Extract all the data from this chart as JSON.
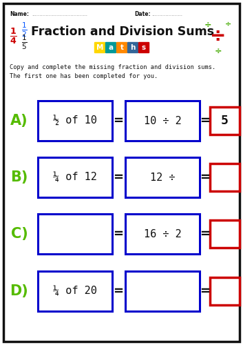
{
  "title": "Fraction and Division Sums",
  "name_label": "Name:",
  "date_label": "Date:",
  "instruction_line1": "Copy and complete the missing fraction and division sums.",
  "instruction_line2": "The first one has been completed for you.",
  "rows": [
    {
      "label": "A)",
      "box1_text": "½ of 10",
      "box2_text": "10 ÷ 2",
      "box3_text": "5"
    },
    {
      "label": "B)",
      "box1_text": "¼ of 12",
      "box2_text": "12 ÷",
      "box3_text": ""
    },
    {
      "label": "C)",
      "box1_text": "",
      "box2_text": "16 ÷ 2",
      "box3_text": ""
    },
    {
      "label": "D)",
      "box1_text": "¼ of 20",
      "box2_text": "",
      "box3_text": ""
    }
  ],
  "bg_color": "#ffffff",
  "border_color": "#111111",
  "blue_box_color": "#0000cc",
  "red_box_color": "#cc0000",
  "label_color": "#55bb00",
  "title_color": "#111111",
  "text_color": "#111111",
  "maths_bg_colors": [
    "#ffd700",
    "#009999",
    "#ff8800",
    "#336699",
    "#cc0000"
  ],
  "maths_letters": [
    "M",
    "a",
    "t",
    "h",
    "s"
  ],
  "frac_14_color": "#cc0000",
  "frac_12_color": "#0055ff",
  "frac_15_color": "#111111",
  "div_green_color": "#44aa00",
  "div_red_color": "#cc0000"
}
